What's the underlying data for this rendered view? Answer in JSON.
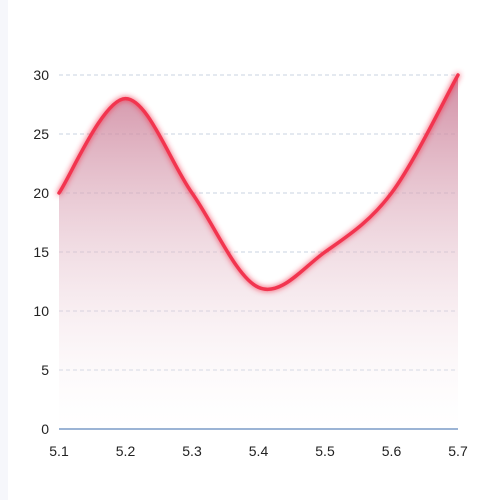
{
  "chart_data": {
    "type": "area",
    "title": "",
    "xlabel": "",
    "ylabel": "",
    "x": [
      "5.1",
      "5.2",
      "5.3",
      "5.4",
      "5.5",
      "5.6",
      "5.7"
    ],
    "series": [
      {
        "values": [
          20,
          28,
          20,
          12,
          15,
          20,
          30
        ]
      }
    ],
    "ylim": [
      0,
      30
    ],
    "yticks": [
      0,
      5,
      10,
      15,
      20,
      25,
      30
    ],
    "grid": true,
    "smooth": true,
    "colors": {
      "line": "#f2364f",
      "area_top": "#c97a94",
      "area_bottom": "#ffffff",
      "grid": "#c9d3e0",
      "axis": "#7c9cc7"
    }
  }
}
